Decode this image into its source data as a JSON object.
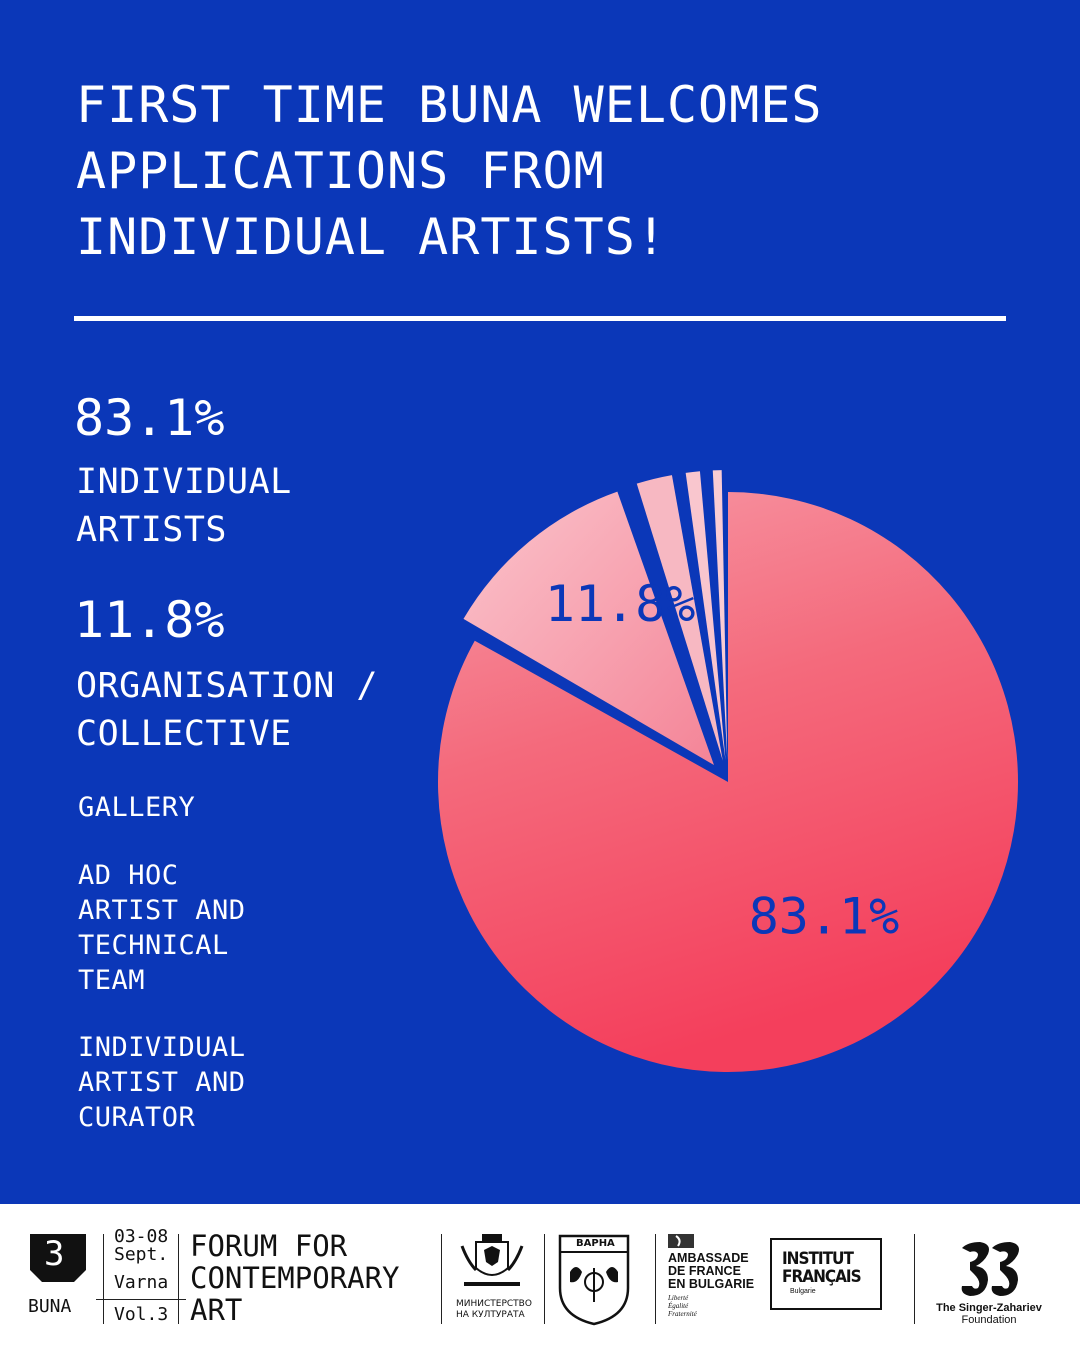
{
  "headline": {
    "lines": [
      "FIRST TIME BUNA WELCOMES",
      "APPLICATIONS FROM",
      "INDIVIDUAL ARTISTS!"
    ]
  },
  "stats": [
    {
      "percent": "83.1%",
      "label_lines": [
        "INDIVIDUAL",
        "ARTISTS"
      ]
    },
    {
      "percent": "11.8%",
      "label_lines": [
        "ORGANISATION /",
        "COLLECTIVE"
      ]
    }
  ],
  "minor_categories": [
    {
      "label_lines": [
        "GALLERY"
      ]
    },
    {
      "label_lines": [
        "AD HOC",
        "ARTIST AND",
        "TECHNICAL",
        "TEAM"
      ]
    },
    {
      "label_lines": [
        "INDIVIDUAL",
        "ARTIST AND",
        "CURATOR"
      ]
    }
  ],
  "chart_data": {
    "type": "pie",
    "categories": [
      "Individual Artists",
      "Organisation / Collective",
      "Gallery",
      "Ad Hoc Artist and Technical Team",
      "Individual Artist and Curator"
    ],
    "values": [
      83.1,
      11.8,
      2.6,
      1.4,
      1.1
    ],
    "slice_labels": [
      "83.1%",
      "11.8%",
      "",
      "",
      ""
    ],
    "colors": {
      "main": "#f4566e",
      "secondary": "#f7a0ad",
      "label": "#0b37b8",
      "background": "#0b37b8"
    }
  },
  "footer": {
    "logo_number": "3",
    "logo_name": "BUNA",
    "dates": "03-08",
    "month": "Sept.",
    "city": "Varna",
    "volume": "Vol.3",
    "forum_lines": [
      "FORUM FOR",
      "CONTEMPORARY",
      "ART"
    ],
    "ministry_lines": [
      "МИНИСТЕРСТВО",
      "НА КУЛТУРАТА"
    ],
    "varna_crest": "ВАРНА",
    "embassy_lines": [
      "AMBASSADE",
      "DE FRANCE",
      "EN BULGARIE"
    ],
    "embassy_motto": [
      "Liberté",
      "Égalité",
      "Fraternité"
    ],
    "institut_lines": [
      "INSTITUT",
      "FRANÇAIS"
    ],
    "institut_sub": "Bulgarie",
    "foundation_lines": [
      "The Singer-Zahariev",
      "Foundation"
    ]
  }
}
